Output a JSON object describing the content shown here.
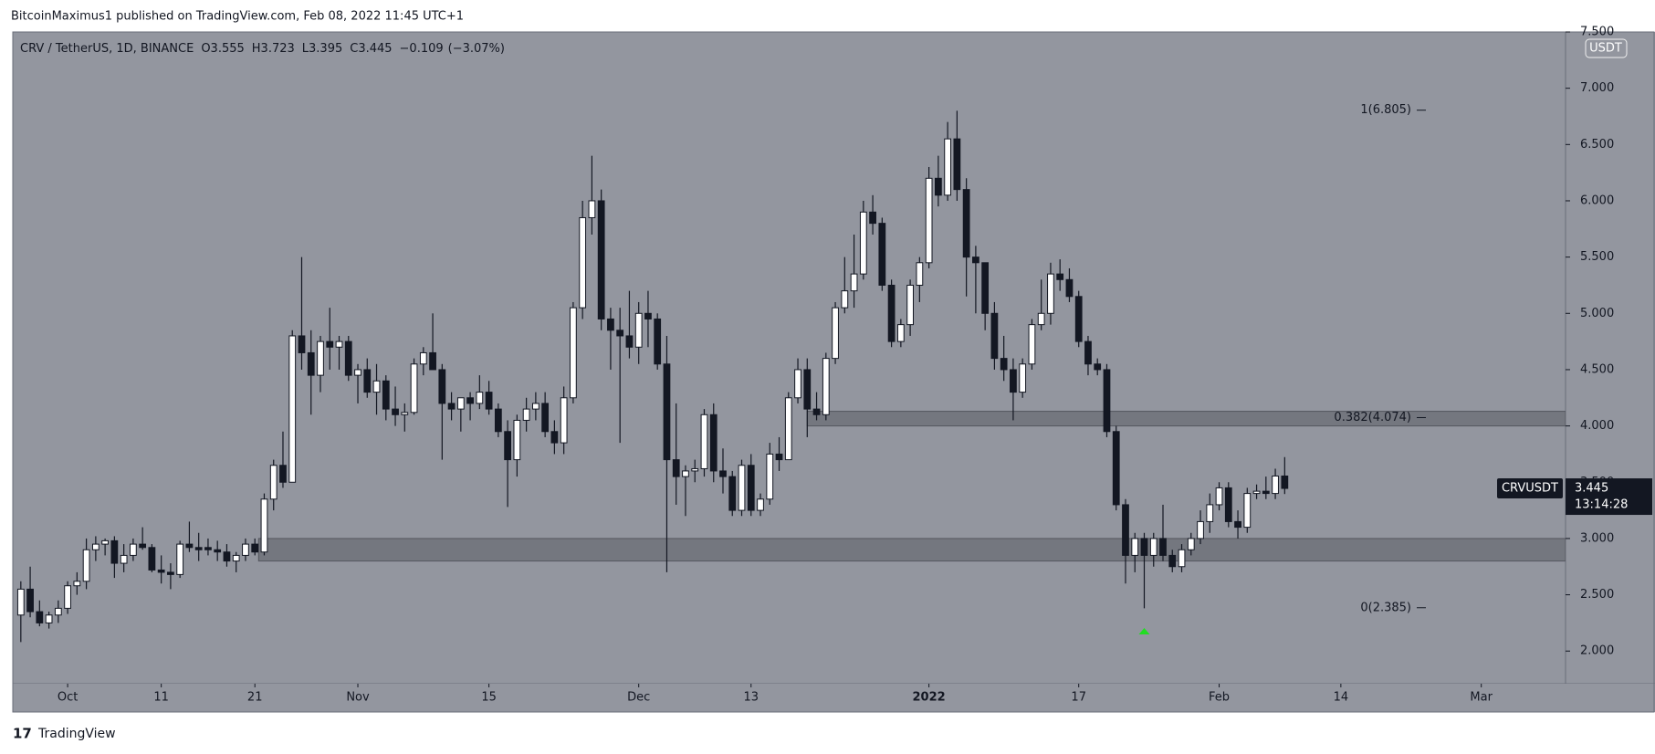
{
  "header": {
    "publisher": "BitcoinMaximus1 published on TradingView.com, Feb 08, 2022 11:45 UTC+1",
    "brand": "TradingView"
  },
  "chart_data": {
    "type": "candlestick",
    "legend": {
      "symbol": "CRV / TetherUS, 1D, BINANCE",
      "items": [
        {
          "key": "O",
          "value": 3.555
        },
        {
          "key": "H",
          "value": 3.723
        },
        {
          "key": "L",
          "value": 3.395
        },
        {
          "key": "C",
          "value": 3.445
        }
      ],
      "change": {
        "value": -0.109,
        "label": "−0.109"
      },
      "change_pct": {
        "value": -3.07,
        "label": "(−3.07%)"
      }
    },
    "currency": "USDT",
    "up_color": "#ffffff",
    "down_color": "#131722",
    "wick_color": "#131722",
    "background": "#93969f",
    "open": [
      2.32,
      2.55,
      2.35,
      2.25,
      2.32,
      2.38,
      2.58,
      2.62,
      2.9,
      2.95,
      2.98,
      2.78,
      2.85,
      2.95,
      2.92,
      2.72,
      2.7,
      2.68,
      2.95,
      2.92,
      2.92,
      2.9,
      2.88,
      2.8,
      2.85,
      2.95,
      2.88,
      3.35,
      3.65,
      3.5,
      4.8,
      4.65,
      4.45,
      4.75,
      4.7,
      4.75,
      4.45,
      4.5,
      4.3,
      4.4,
      4.15,
      4.1,
      4.12,
      4.55,
      4.65,
      4.5,
      4.2,
      4.15,
      4.25,
      4.2,
      4.3,
      4.15,
      3.95,
      3.7,
      4.05,
      4.15,
      4.2,
      3.95,
      3.85,
      4.25,
      5.05,
      5.85,
      6.0,
      4.95,
      4.85,
      4.8,
      4.7,
      5.0,
      4.95,
      4.55,
      3.7,
      3.55,
      3.6,
      3.62,
      4.1,
      3.6,
      3.55,
      3.25,
      3.65,
      3.25,
      3.35,
      3.75,
      3.7,
      4.25,
      4.5,
      4.15,
      4.1,
      4.6,
      5.05,
      5.2,
      5.35,
      5.9,
      5.8,
      5.25,
      4.75,
      4.9,
      5.25,
      5.45,
      6.2,
      6.05,
      6.55,
      6.1,
      5.5,
      5.45,
      5.0,
      4.6,
      4.5,
      4.3,
      4.55,
      4.9,
      5.0,
      5.35,
      5.3,
      5.15,
      4.75,
      4.55,
      4.5,
      3.95,
      3.3,
      2.85,
      3.0,
      2.85,
      3.0,
      2.85,
      2.75,
      2.9,
      3.0,
      3.15,
      3.3,
      3.45,
      3.15,
      3.1,
      3.4,
      3.42,
      3.4,
      3.555
    ],
    "high": [
      2.62,
      2.75,
      2.45,
      2.35,
      2.45,
      2.62,
      2.7,
      3.0,
      3.02,
      3.0,
      3.02,
      2.95,
      3.0,
      3.1,
      2.95,
      2.85,
      2.78,
      2.98,
      3.15,
      3.05,
      3.0,
      2.98,
      2.95,
      2.88,
      3.0,
      3.0,
      3.4,
      3.7,
      3.95,
      4.85,
      5.5,
      4.85,
      4.8,
      5.05,
      4.8,
      4.8,
      4.55,
      4.6,
      4.55,
      4.45,
      4.35,
      4.2,
      4.6,
      4.7,
      5.0,
      4.55,
      4.3,
      4.25,
      4.3,
      4.45,
      4.4,
      4.2,
      4.05,
      4.1,
      4.25,
      4.3,
      4.3,
      4.05,
      4.35,
      5.1,
      6.0,
      6.4,
      6.1,
      5.05,
      5.05,
      5.2,
      5.1,
      5.2,
      5.0,
      4.8,
      4.2,
      3.65,
      3.7,
      4.15,
      4.2,
      3.8,
      3.6,
      3.7,
      3.75,
      3.4,
      3.85,
      3.9,
      4.3,
      4.6,
      4.6,
      4.3,
      4.65,
      5.1,
      5.5,
      5.7,
      6.0,
      6.05,
      5.85,
      5.3,
      4.95,
      5.3,
      5.5,
      6.3,
      6.4,
      6.7,
      6.8,
      6.2,
      5.6,
      5.45,
      5.1,
      4.8,
      4.6,
      4.6,
      4.95,
      5.3,
      5.45,
      5.48,
      5.4,
      5.2,
      4.8,
      4.6,
      4.55,
      4.0,
      3.35,
      3.05,
      3.05,
      3.05,
      3.3,
      2.9,
      2.95,
      3.05,
      3.25,
      3.4,
      3.5,
      3.5,
      3.25,
      3.45,
      3.48,
      3.55,
      3.62,
      3.723
    ],
    "low": [
      2.08,
      2.3,
      2.22,
      2.2,
      2.25,
      2.33,
      2.5,
      2.55,
      2.8,
      2.85,
      2.65,
      2.7,
      2.8,
      2.9,
      2.7,
      2.6,
      2.55,
      2.65,
      2.88,
      2.8,
      2.85,
      2.8,
      2.75,
      2.7,
      2.8,
      2.85,
      2.85,
      3.25,
      3.45,
      3.5,
      4.5,
      4.1,
      4.3,
      4.5,
      4.5,
      4.4,
      4.2,
      4.25,
      4.1,
      4.05,
      4.0,
      3.95,
      4.1,
      4.45,
      4.5,
      3.7,
      4.05,
      3.95,
      4.05,
      4.15,
      4.1,
      3.9,
      3.28,
      3.55,
      3.95,
      4.05,
      3.9,
      3.75,
      3.75,
      4.2,
      4.95,
      5.7,
      4.85,
      4.5,
      3.85,
      4.6,
      4.55,
      4.7,
      4.5,
      2.7,
      3.3,
      3.2,
      3.5,
      3.55,
      3.5,
      3.4,
      3.2,
      3.2,
      3.2,
      3.2,
      3.3,
      3.6,
      3.7,
      4.2,
      3.9,
      4.05,
      4.05,
      4.55,
      5.0,
      5.05,
      5.3,
      5.7,
      5.2,
      4.7,
      4.7,
      4.8,
      5.1,
      5.4,
      5.95,
      6.0,
      6.0,
      5.15,
      5.0,
      4.85,
      4.5,
      4.4,
      4.05,
      4.25,
      4.5,
      4.85,
      4.9,
      5.2,
      5.1,
      4.7,
      4.45,
      4.45,
      3.9,
      3.25,
      2.6,
      2.7,
      2.38,
      2.75,
      2.8,
      2.7,
      2.7,
      2.85,
      2.95,
      3.05,
      3.25,
      3.1,
      3.0,
      3.05,
      3.35,
      3.35,
      3.35,
      3.395
    ],
    "close": [
      2.55,
      2.35,
      2.25,
      2.32,
      2.38,
      2.58,
      2.62,
      2.9,
      2.95,
      2.98,
      2.78,
      2.85,
      2.95,
      2.92,
      2.72,
      2.7,
      2.68,
      2.95,
      2.92,
      2.9,
      2.9,
      2.88,
      2.8,
      2.85,
      2.95,
      2.88,
      3.35,
      3.65,
      3.5,
      4.8,
      4.65,
      4.45,
      4.75,
      4.7,
      4.75,
      4.45,
      4.5,
      4.3,
      4.4,
      4.15,
      4.1,
      4.12,
      4.55,
      4.65,
      4.5,
      4.2,
      4.15,
      4.25,
      4.2,
      4.3,
      4.15,
      3.95,
      3.7,
      4.05,
      4.15,
      4.2,
      3.95,
      3.85,
      4.25,
      5.05,
      5.85,
      6.0,
      4.95,
      4.85,
      4.8,
      4.7,
      5.0,
      4.95,
      4.55,
      3.7,
      3.55,
      3.6,
      3.62,
      4.1,
      3.6,
      3.55,
      3.25,
      3.65,
      3.25,
      3.35,
      3.75,
      3.7,
      4.25,
      4.5,
      4.15,
      4.1,
      4.6,
      5.05,
      5.2,
      5.35,
      5.9,
      5.8,
      5.25,
      4.75,
      4.9,
      5.25,
      5.45,
      6.2,
      6.05,
      6.55,
      6.1,
      5.5,
      5.45,
      5.0,
      4.6,
      4.5,
      4.3,
      4.55,
      4.9,
      5.0,
      5.35,
      5.3,
      5.15,
      4.75,
      4.55,
      4.5,
      3.95,
      3.3,
      2.85,
      3.0,
      2.85,
      3.0,
      2.85,
      2.75,
      2.9,
      3.0,
      3.15,
      3.3,
      3.45,
      3.15,
      3.1,
      3.4,
      3.42,
      3.4,
      3.555,
      3.445
    ],
    "xlim": [
      -0.86,
      165
    ],
    "xticks": [
      {
        "value": 5,
        "label": "Oct"
      },
      {
        "value": 15,
        "label": "11"
      },
      {
        "value": 25,
        "label": "21"
      },
      {
        "value": 36,
        "label": "Nov"
      },
      {
        "value": 50,
        "label": "15"
      },
      {
        "value": 66,
        "label": "Dec"
      },
      {
        "value": 78,
        "label": "13"
      },
      {
        "value": 97,
        "label": "2022"
      },
      {
        "value": 113,
        "label": "17"
      },
      {
        "value": 128,
        "label": "Feb"
      },
      {
        "value": 141,
        "label": "14"
      },
      {
        "value": 156,
        "label": "Mar"
      }
    ],
    "ylim": [
      1.71,
      7.5
    ],
    "yticks": [
      {
        "value": 2,
        "label": "2.000"
      },
      {
        "value": 2.5,
        "label": "2.500"
      },
      {
        "value": 3,
        "label": "3.000"
      },
      {
        "value": 3.5,
        "label": "3.500"
      },
      {
        "value": 4,
        "label": "4.000"
      },
      {
        "value": 4.5,
        "label": "4.500"
      },
      {
        "value": 5,
        "label": "5.000"
      },
      {
        "value": 5.5,
        "label": "5.500"
      },
      {
        "value": 6,
        "label": "6.000"
      },
      {
        "value": 6.5,
        "label": "6.500"
      },
      {
        "value": 7,
        "label": "7.000"
      },
      {
        "value": 7.5,
        "label": "7.500"
      }
    ],
    "zones": [
      {
        "x0": 25.4,
        "y0": 2.8,
        "y1": 3.0
      },
      {
        "x0": 84,
        "y0": 4.0,
        "y1": 4.13
      }
    ],
    "fib_levels": [
      {
        "value": 6.805,
        "label": "1(6.805)"
      },
      {
        "value": 4.074,
        "label": "0.382(4.074)"
      },
      {
        "value": 2.385,
        "label": "0(2.385)"
      }
    ],
    "markers": [
      {
        "x": 120,
        "y": 2.18,
        "color": "#22dd22"
      }
    ],
    "price_tag": {
      "name": "CRVUSDT",
      "countdown": "13:14:28"
    }
  }
}
